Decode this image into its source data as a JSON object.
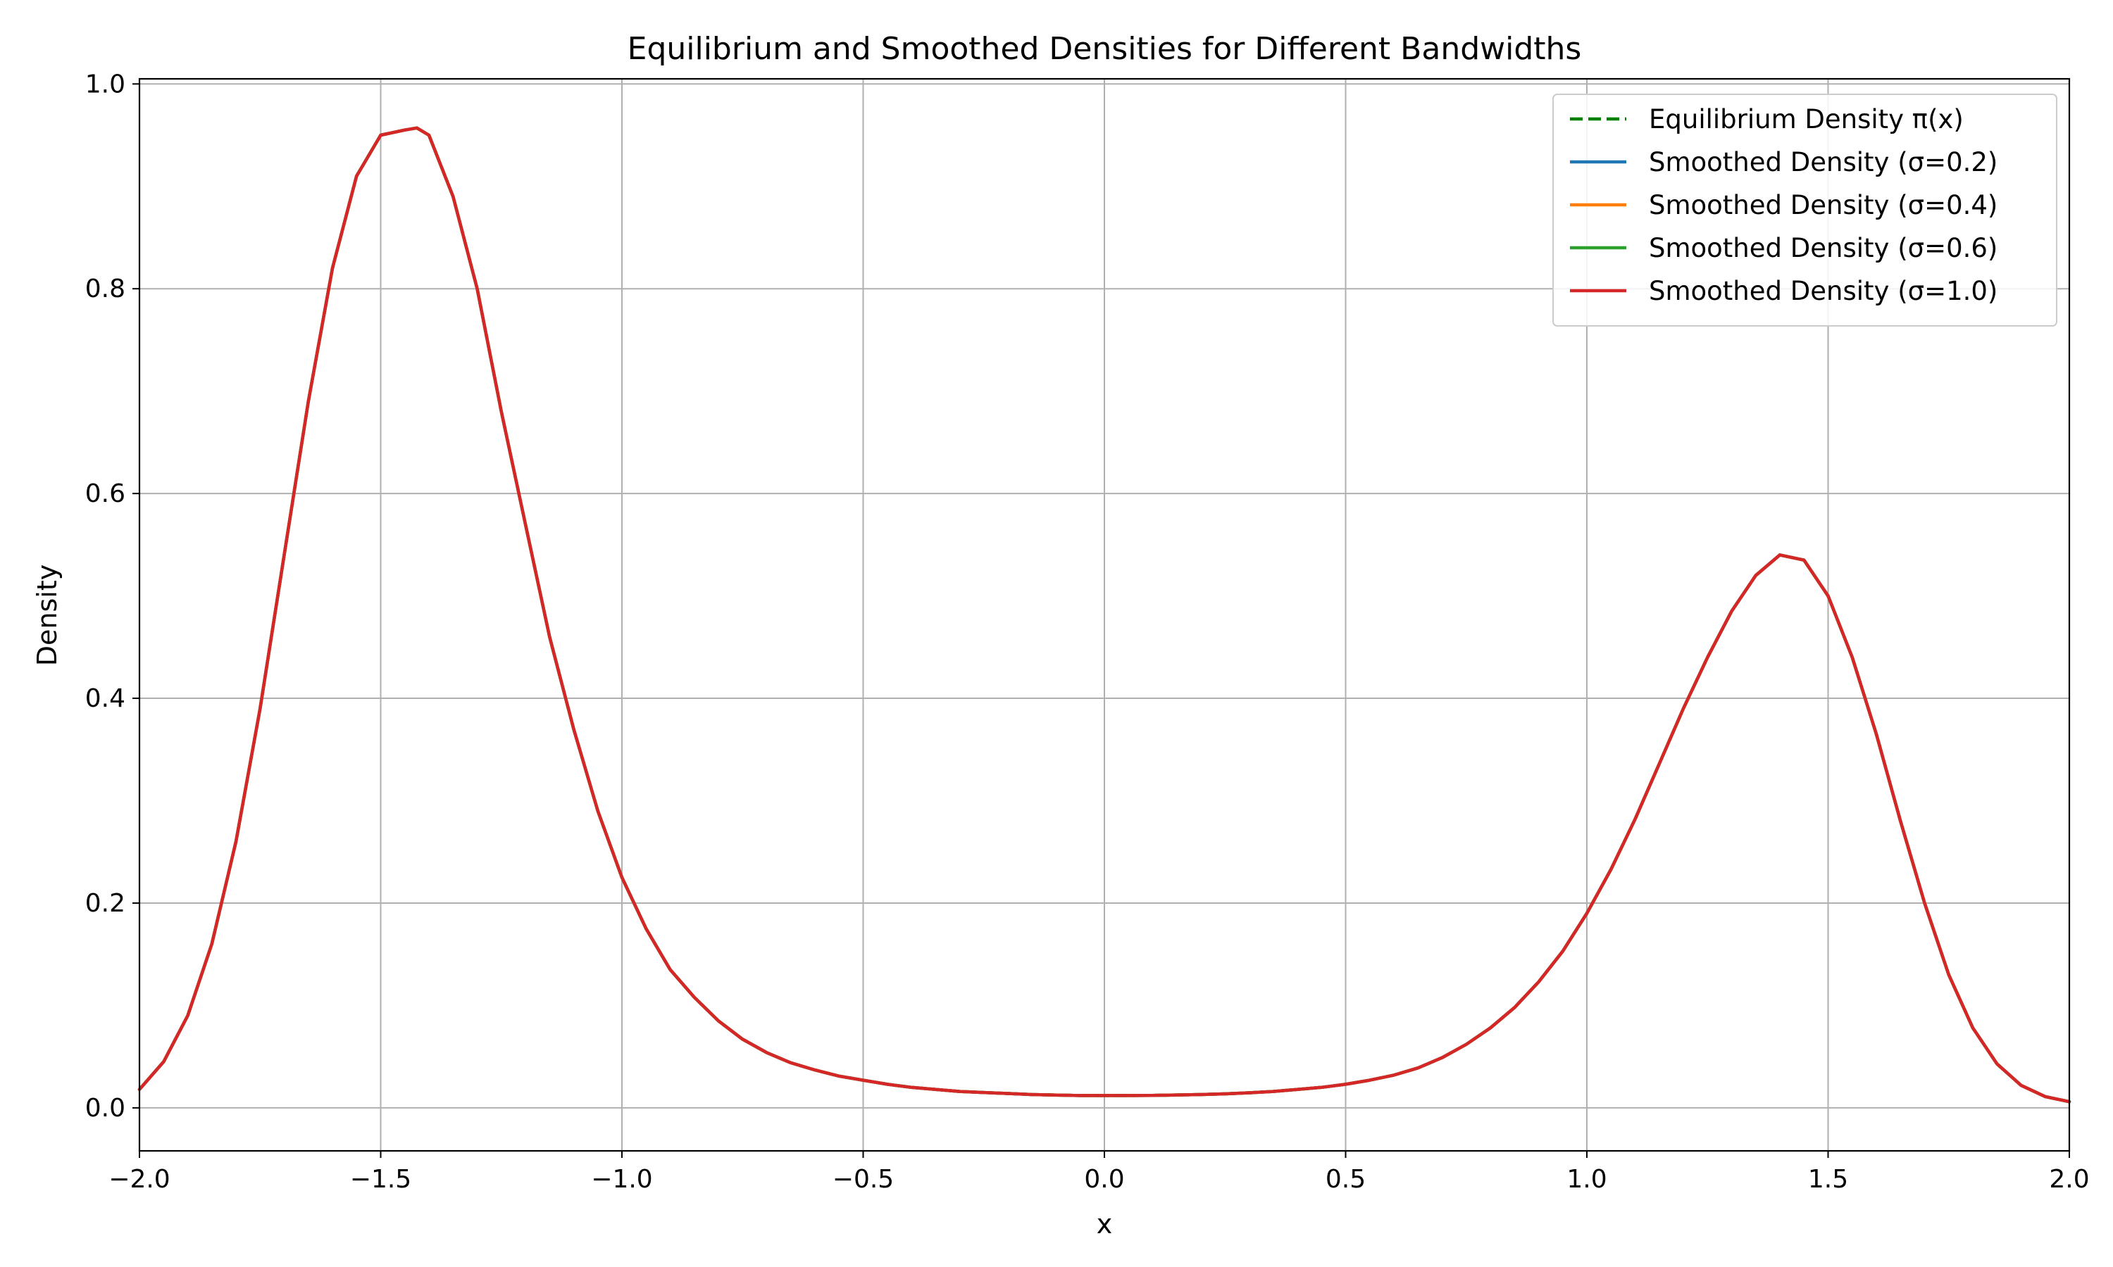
{
  "chart_data": {
    "type": "line",
    "title": "Equilibrium and Smoothed Densities for Different Bandwidths",
    "xlabel": "x",
    "ylabel": "Density",
    "xlim": [
      -2.0,
      2.0
    ],
    "ylim": [
      -0.042,
      1.005
    ],
    "xticks": [
      -2.0,
      -1.5,
      -1.0,
      -0.5,
      0.0,
      0.5,
      1.0,
      1.5,
      2.0
    ],
    "xtick_labels": [
      "−2.0",
      "−1.5",
      "−1.0",
      "−0.5",
      "0.0",
      "0.5",
      "1.0",
      "1.5",
      "2.0"
    ],
    "yticks": [
      0.0,
      0.2,
      0.4,
      0.6,
      0.8,
      1.0
    ],
    "ytick_labels": [
      "0.0",
      "0.2",
      "0.4",
      "0.6",
      "0.8",
      "1.0"
    ],
    "grid": true,
    "legend_position": "top-right",
    "x": [
      -2.0,
      -1.95,
      -1.9,
      -1.85,
      -1.8,
      -1.75,
      -1.7,
      -1.65,
      -1.6,
      -1.55,
      -1.5,
      -1.45,
      -1.425,
      -1.4,
      -1.35,
      -1.3,
      -1.25,
      -1.2,
      -1.15,
      -1.1,
      -1.05,
      -1.0,
      -0.95,
      -0.9,
      -0.85,
      -0.8,
      -0.75,
      -0.7,
      -0.65,
      -0.6,
      -0.55,
      -0.5,
      -0.45,
      -0.4,
      -0.35,
      -0.3,
      -0.25,
      -0.2,
      -0.15,
      -0.1,
      -0.05,
      0.0,
      0.05,
      0.1,
      0.15,
      0.2,
      0.25,
      0.3,
      0.35,
      0.4,
      0.45,
      0.5,
      0.55,
      0.6,
      0.65,
      0.7,
      0.75,
      0.8,
      0.85,
      0.9,
      0.95,
      1.0,
      1.05,
      1.1,
      1.15,
      1.2,
      1.25,
      1.3,
      1.35,
      1.4,
      1.45,
      1.5,
      1.55,
      1.6,
      1.65,
      1.7,
      1.75,
      1.8,
      1.85,
      1.9,
      1.95,
      2.0
    ],
    "series": [
      {
        "name": "Equilibrium Density π(x)",
        "color": "#008000",
        "dashed": true,
        "values": [
          0.018,
          0.045,
          0.09,
          0.16,
          0.26,
          0.39,
          0.54,
          0.69,
          0.82,
          0.91,
          0.95,
          0.955,
          0.957,
          0.95,
          0.89,
          0.8,
          0.68,
          0.57,
          0.46,
          0.37,
          0.29,
          0.225,
          0.175,
          0.135,
          0.108,
          0.085,
          0.067,
          0.054,
          0.044,
          0.037,
          0.031,
          0.027,
          0.023,
          0.02,
          0.018,
          0.016,
          0.015,
          0.014,
          0.013,
          0.0125,
          0.012,
          0.012,
          0.012,
          0.0122,
          0.0126,
          0.013,
          0.0137,
          0.0147,
          0.016,
          0.018,
          0.02,
          0.023,
          0.027,
          0.032,
          0.039,
          0.049,
          0.062,
          0.078,
          0.098,
          0.123,
          0.153,
          0.19,
          0.233,
          0.282,
          0.336,
          0.39,
          0.44,
          0.485,
          0.52,
          0.54,
          0.535,
          0.5,
          0.44,
          0.365,
          0.28,
          0.2,
          0.13,
          0.078,
          0.043,
          0.022,
          0.011,
          0.006
        ]
      },
      {
        "name": "Smoothed Density (σ=0.2)",
        "color": "#1f77b4",
        "dashed": false,
        "values": [
          0.018,
          0.045,
          0.09,
          0.16,
          0.26,
          0.39,
          0.54,
          0.69,
          0.82,
          0.91,
          0.95,
          0.955,
          0.957,
          0.95,
          0.89,
          0.8,
          0.68,
          0.57,
          0.46,
          0.37,
          0.29,
          0.225,
          0.175,
          0.135,
          0.108,
          0.085,
          0.067,
          0.054,
          0.044,
          0.037,
          0.031,
          0.027,
          0.023,
          0.02,
          0.018,
          0.016,
          0.015,
          0.014,
          0.013,
          0.0125,
          0.012,
          0.012,
          0.012,
          0.0122,
          0.0126,
          0.013,
          0.0137,
          0.0147,
          0.016,
          0.018,
          0.02,
          0.023,
          0.027,
          0.032,
          0.039,
          0.049,
          0.062,
          0.078,
          0.098,
          0.123,
          0.153,
          0.19,
          0.233,
          0.282,
          0.336,
          0.39,
          0.44,
          0.485,
          0.52,
          0.54,
          0.535,
          0.5,
          0.44,
          0.365,
          0.28,
          0.2,
          0.13,
          0.078,
          0.043,
          0.022,
          0.011,
          0.006
        ]
      },
      {
        "name": "Smoothed Density (σ=0.4)",
        "color": "#ff7f0e",
        "dashed": false,
        "values": [
          0.018,
          0.045,
          0.09,
          0.16,
          0.26,
          0.39,
          0.54,
          0.69,
          0.82,
          0.91,
          0.95,
          0.955,
          0.957,
          0.95,
          0.89,
          0.8,
          0.68,
          0.57,
          0.46,
          0.37,
          0.29,
          0.225,
          0.175,
          0.135,
          0.108,
          0.085,
          0.067,
          0.054,
          0.044,
          0.037,
          0.031,
          0.027,
          0.023,
          0.02,
          0.018,
          0.016,
          0.015,
          0.014,
          0.013,
          0.0125,
          0.012,
          0.012,
          0.012,
          0.0122,
          0.0126,
          0.013,
          0.0137,
          0.0147,
          0.016,
          0.018,
          0.02,
          0.023,
          0.027,
          0.032,
          0.039,
          0.049,
          0.062,
          0.078,
          0.098,
          0.123,
          0.153,
          0.19,
          0.233,
          0.282,
          0.336,
          0.39,
          0.44,
          0.485,
          0.52,
          0.54,
          0.535,
          0.5,
          0.44,
          0.365,
          0.28,
          0.2,
          0.13,
          0.078,
          0.043,
          0.022,
          0.011,
          0.006
        ]
      },
      {
        "name": "Smoothed Density (σ=0.6)",
        "color": "#2ca02c",
        "dashed": false,
        "values": [
          0.018,
          0.045,
          0.09,
          0.16,
          0.26,
          0.39,
          0.54,
          0.69,
          0.82,
          0.91,
          0.95,
          0.955,
          0.957,
          0.95,
          0.89,
          0.8,
          0.68,
          0.57,
          0.46,
          0.37,
          0.29,
          0.225,
          0.175,
          0.135,
          0.108,
          0.085,
          0.067,
          0.054,
          0.044,
          0.037,
          0.031,
          0.027,
          0.023,
          0.02,
          0.018,
          0.016,
          0.015,
          0.014,
          0.013,
          0.0125,
          0.012,
          0.012,
          0.012,
          0.0122,
          0.0126,
          0.013,
          0.0137,
          0.0147,
          0.016,
          0.018,
          0.02,
          0.023,
          0.027,
          0.032,
          0.039,
          0.049,
          0.062,
          0.078,
          0.098,
          0.123,
          0.153,
          0.19,
          0.233,
          0.282,
          0.336,
          0.39,
          0.44,
          0.485,
          0.52,
          0.54,
          0.535,
          0.5,
          0.44,
          0.365,
          0.28,
          0.2,
          0.13,
          0.078,
          0.043,
          0.022,
          0.011,
          0.006
        ]
      },
      {
        "name": "Smoothed Density (σ=1.0)",
        "color": "#d62728",
        "dashed": false,
        "values": [
          0.018,
          0.045,
          0.09,
          0.16,
          0.26,
          0.39,
          0.54,
          0.69,
          0.82,
          0.91,
          0.95,
          0.955,
          0.957,
          0.95,
          0.89,
          0.8,
          0.68,
          0.57,
          0.46,
          0.37,
          0.29,
          0.225,
          0.175,
          0.135,
          0.108,
          0.085,
          0.067,
          0.054,
          0.044,
          0.037,
          0.031,
          0.027,
          0.023,
          0.02,
          0.018,
          0.016,
          0.015,
          0.014,
          0.013,
          0.0125,
          0.012,
          0.012,
          0.012,
          0.0122,
          0.0126,
          0.013,
          0.0137,
          0.0147,
          0.016,
          0.018,
          0.02,
          0.023,
          0.027,
          0.032,
          0.039,
          0.049,
          0.062,
          0.078,
          0.098,
          0.123,
          0.153,
          0.19,
          0.233,
          0.282,
          0.336,
          0.39,
          0.44,
          0.485,
          0.52,
          0.54,
          0.535,
          0.5,
          0.44,
          0.365,
          0.28,
          0.2,
          0.13,
          0.078,
          0.043,
          0.022,
          0.011,
          0.006
        ]
      }
    ]
  }
}
